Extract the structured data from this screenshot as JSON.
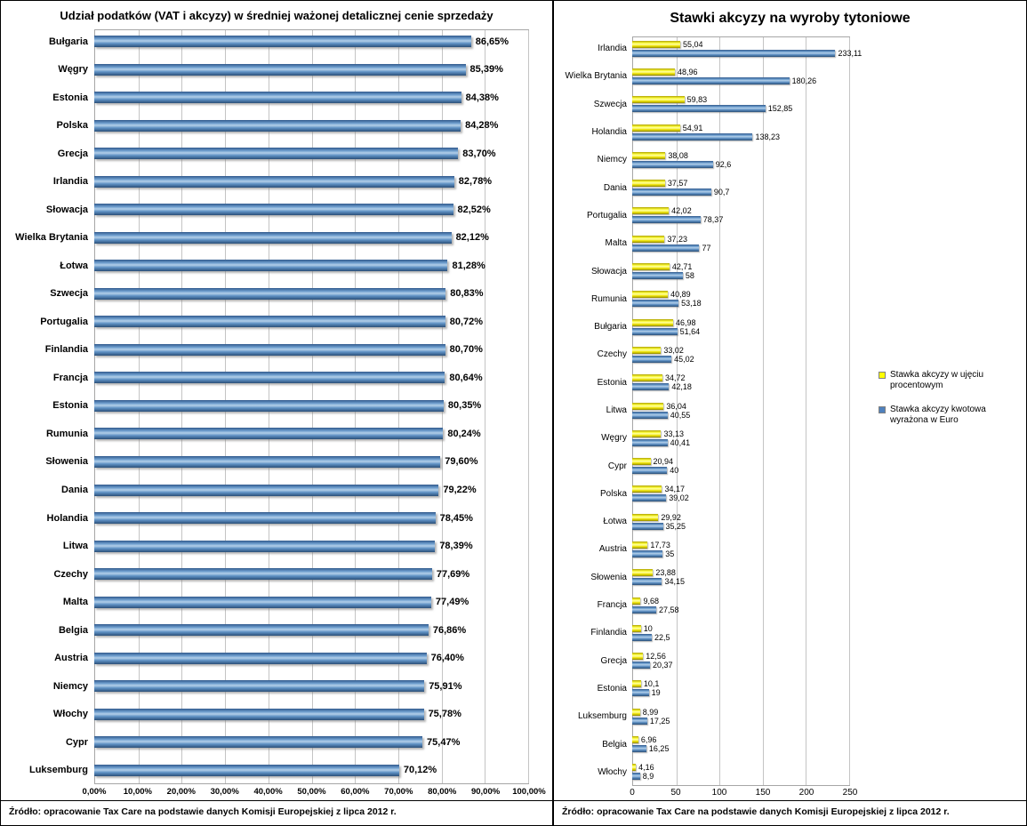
{
  "chart_data": [
    {
      "type": "bar",
      "orientation": "horizontal",
      "title": "Udział podatków (VAT i akcyzy) w średniej ważonej detalicznej cenie sprzedaży",
      "categories": [
        "Bułgaria",
        "Węgry",
        "Estonia",
        "Polska",
        "Grecja",
        "Irlandia",
        "Słowacja",
        "Wielka Brytania",
        "Łotwa",
        "Szwecja",
        "Portugalia",
        "Finlandia",
        "Francja",
        "Estonia",
        "Rumunia",
        "Słowenia",
        "Dania",
        "Holandia",
        "Litwa",
        "Czechy",
        "Malta",
        "Belgia",
        "Austria",
        "Niemcy",
        "Włochy",
        "Cypr",
        "Luksemburg"
      ],
      "values": [
        86.65,
        85.39,
        84.38,
        84.28,
        83.7,
        82.78,
        82.52,
        82.12,
        81.28,
        80.83,
        80.72,
        80.7,
        80.64,
        80.35,
        80.24,
        79.6,
        79.22,
        78.45,
        78.39,
        77.69,
        77.49,
        76.86,
        76.4,
        75.91,
        75.78,
        75.47,
        70.12
      ],
      "value_labels": [
        "86,65%",
        "85,39%",
        "84,38%",
        "84,28%",
        "83,70%",
        "82,78%",
        "82,52%",
        "82,12%",
        "81,28%",
        "80,83%",
        "80,72%",
        "80,70%",
        "80,64%",
        "80,35%",
        "80,24%",
        "79,60%",
        "79,22%",
        "78,45%",
        "78,39%",
        "77,69%",
        "77,49%",
        "76,86%",
        "76,40%",
        "75,91%",
        "75,78%",
        "75,47%",
        "70,12%"
      ],
      "bar_color": "#4F81BD",
      "xlim": [
        0,
        100
      ],
      "x_ticks": [
        "0,00%",
        "10,00%",
        "20,00%",
        "30,00%",
        "40,00%",
        "50,00%",
        "60,00%",
        "70,00%",
        "80,00%",
        "90,00%",
        "100,00%"
      ],
      "grid": true,
      "legend_position": "none",
      "source": "Źródło: opracowanie Tax Care na podstawie danych Komisji Europejskiej z lipca 2012 r."
    },
    {
      "type": "bar",
      "orientation": "horizontal",
      "title": "Stawki akcyzy na wyroby tytoniowe",
      "categories": [
        "Irlandia",
        "Wielka Brytania",
        "Szwecja",
        "Holandia",
        "Niemcy",
        "Dania",
        "Portugalia",
        "Malta",
        "Słowacja",
        "Rumunia",
        "Bułgaria",
        "Czechy",
        "Estonia",
        "Litwa",
        "Węgry",
        "Cypr",
        "Polska",
        "Łotwa",
        "Austria",
        "Słowenia",
        "Francja",
        "Finlandia",
        "Grecja",
        "Estonia",
        "Luksemburg",
        "Belgia",
        "Włochy"
      ],
      "series": [
        {
          "name": "Stawka akcyzy w ujęciu procentowym",
          "color": "#FFFF00",
          "values": [
            55.04,
            48.96,
            59.83,
            54.91,
            38.08,
            37.57,
            42.02,
            37.23,
            42.71,
            40.89,
            46.98,
            33.02,
            34.72,
            36.04,
            33.13,
            20.94,
            34.17,
            29.92,
            17.73,
            23.88,
            9.68,
            10,
            12.56,
            10.1,
            8.99,
            6.96,
            4.16
          ],
          "value_labels": [
            "55,04",
            "48,96",
            "59,83",
            "54,91",
            "38,08",
            "37,57",
            "42,02",
            "37,23",
            "42,71",
            "40,89",
            "46,98",
            "33,02",
            "34,72",
            "36,04",
            "33,13",
            "20,94",
            "34,17",
            "29,92",
            "17,73",
            "23,88",
            "9,68",
            "10",
            "12,56",
            "10,1",
            "8,99",
            "6,96",
            "4,16"
          ]
        },
        {
          "name": "Stawka akcyzy kwotowa wyrażona w Euro",
          "color": "#4F81BD",
          "values": [
            233.11,
            180.26,
            152.85,
            138.23,
            92.6,
            90.7,
            78.37,
            77,
            58,
            53.18,
            51.64,
            45.02,
            42.18,
            40.55,
            40.41,
            40,
            39.02,
            35.25,
            35,
            34.15,
            27.58,
            22.5,
            20.37,
            19,
            17.25,
            16.25,
            8.9
          ],
          "value_labels": [
            "233,11",
            "180,26",
            "152,85",
            "138,23",
            "92,6",
            "90,7",
            "78,37",
            "77",
            "58",
            "53,18",
            "51,64",
            "45,02",
            "42,18",
            "40,55",
            "40,41",
            "40",
            "39,02",
            "35,25",
            "35",
            "34,15",
            "27,58",
            "22,5",
            "20,37",
            "19",
            "17,25",
            "16,25",
            "8,9"
          ]
        }
      ],
      "xlim": [
        0,
        250
      ],
      "x_ticks": [
        "0",
        "50",
        "100",
        "150",
        "200",
        "250"
      ],
      "grid": true,
      "legend_position": "right",
      "source": "Źródło: opracowanie Tax Care na podstawie danych Komisji Europejskiej z lipca 2012 r."
    }
  ]
}
